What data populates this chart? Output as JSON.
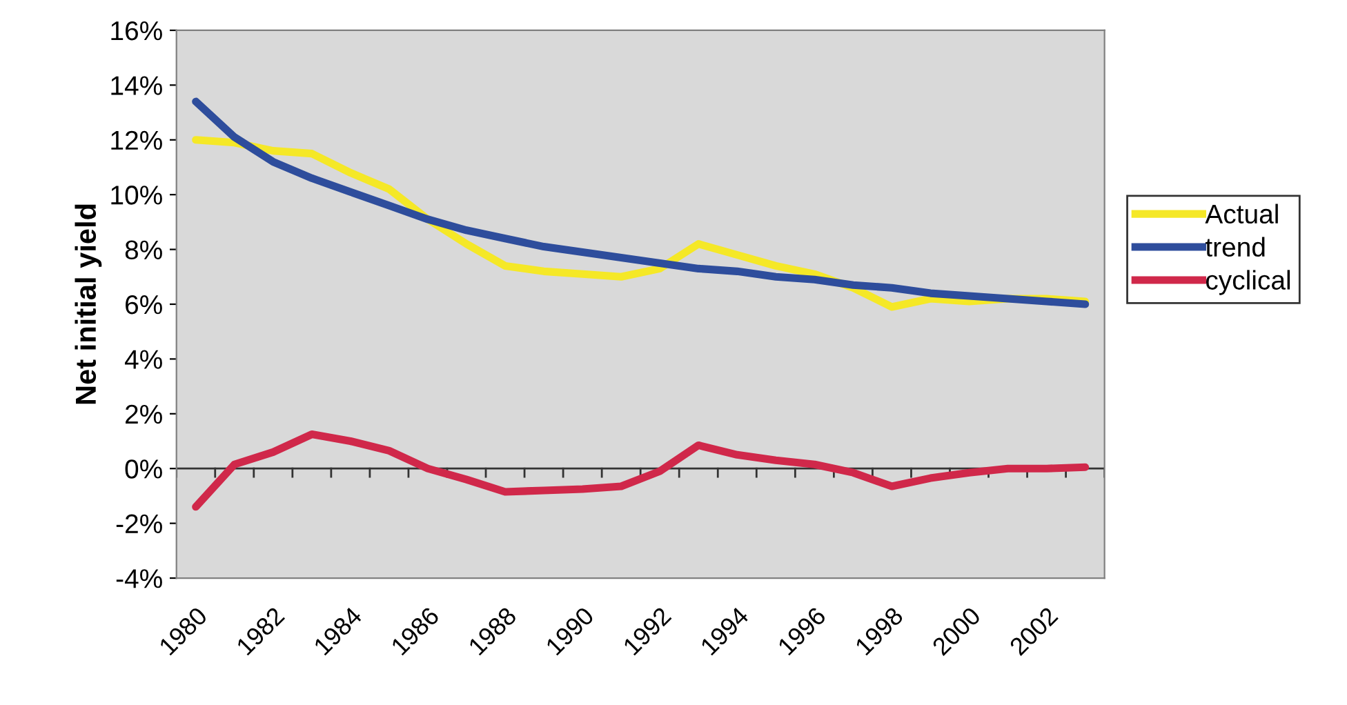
{
  "chart_data": {
    "type": "line",
    "ylabel": "Net initial yield",
    "categories": [
      "1980",
      null,
      "1982",
      null,
      "1984",
      null,
      "1986",
      null,
      "1988",
      null,
      "1990",
      null,
      "1992",
      null,
      "1994",
      null,
      "1996",
      null,
      "1998",
      null,
      "2000",
      null,
      "2002",
      null
    ],
    "series": [
      {
        "name": "Actual",
        "color": "#f5e827",
        "values": [
          12.0,
          11.9,
          11.6,
          11.5,
          10.8,
          10.2,
          9.1,
          8.2,
          7.4,
          7.2,
          7.1,
          7.0,
          7.3,
          8.2,
          7.8,
          7.4,
          7.1,
          6.6,
          5.9,
          6.2,
          6.1,
          6.2,
          6.2,
          6.1
        ]
      },
      {
        "name": "trend",
        "color": "#2e4d9c",
        "values": [
          13.4,
          12.1,
          11.2,
          10.6,
          10.1,
          9.6,
          9.1,
          8.7,
          8.4,
          8.1,
          7.9,
          7.7,
          7.5,
          7.3,
          7.2,
          7.0,
          6.9,
          6.7,
          6.6,
          6.4,
          6.3,
          6.2,
          6.1,
          6.0
        ]
      },
      {
        "name": "cyclical",
        "color": "#d0284a",
        "values": [
          -1.4,
          0.15,
          0.6,
          1.25,
          1.0,
          0.65,
          0.0,
          -0.4,
          -0.85,
          -0.8,
          -0.75,
          -0.65,
          -0.1,
          0.85,
          0.5,
          0.3,
          0.15,
          -0.15,
          -0.65,
          -0.35,
          -0.15,
          0.0,
          0.0,
          0.05
        ]
      }
    ],
    "ylim": [
      -4,
      16
    ],
    "yticks": [
      {
        "value": -4,
        "label": "-4%"
      },
      {
        "value": -2,
        "label": "-2%"
      },
      {
        "value": 0,
        "label": "0%"
      },
      {
        "value": 2,
        "label": "2%"
      },
      {
        "value": 4,
        "label": "4%"
      },
      {
        "value": 6,
        "label": "6%"
      },
      {
        "value": 8,
        "label": "8%"
      },
      {
        "value": 10,
        "label": "10%"
      },
      {
        "value": 12,
        "label": "12%"
      },
      {
        "value": 14,
        "label": "14%"
      },
      {
        "value": 16,
        "label": "16%"
      }
    ],
    "ref_lines": [
      {
        "axis": "y",
        "value": 0,
        "color": "#333333"
      }
    ],
    "legend": "right",
    "grid": false,
    "marker": "none",
    "line_style": "solid"
  }
}
